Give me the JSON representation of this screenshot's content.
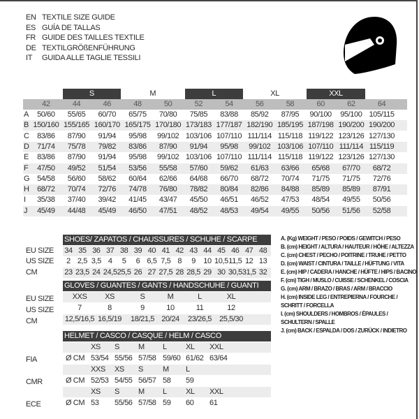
{
  "titles": [
    {
      "lang": "EN",
      "text": "TEXTILE SIZE GUIDE"
    },
    {
      "lang": "ES",
      "text": "GUÍA DE TALLAS"
    },
    {
      "lang": "FR",
      "text": "GUIDE DES TAILLES TEXTILE"
    },
    {
      "lang": "DE",
      "text": "TEXTILGRÖßENFÜHRUNG"
    },
    {
      "lang": "IT",
      "text": "GUIDA ALLE TAGLIE TESSILI"
    }
  ],
  "icon": "helmet-icon",
  "textile": {
    "size_groups": [
      "S",
      "M",
      "L",
      "XL",
      "XXL"
    ],
    "columns": [
      "42",
      "44",
      "46",
      "48",
      "50",
      "52",
      "54",
      "56",
      "58",
      "60",
      "62",
      "64"
    ],
    "rows": [
      {
        "label": "A",
        "values": [
          "50/60",
          "55/65",
          "60/70",
          "65/75",
          "70/80",
          "75/85",
          "83/88",
          "85/92",
          "87/95",
          "90/100",
          "95/100",
          "105/115"
        ]
      },
      {
        "label": "B",
        "values": [
          "150/160",
          "155/165",
          "160/170",
          "165/175",
          "170/180",
          "173/183",
          "177/187",
          "182/190",
          "185/195",
          "187/198",
          "190/200",
          "190/200"
        ]
      },
      {
        "label": "C",
        "values": [
          "83/86",
          "87/90",
          "91/94",
          "95/98",
          "99/102",
          "103/106",
          "107/110",
          "111/114",
          "115/118",
          "119/122",
          "123/126",
          "127/130"
        ]
      },
      {
        "label": "D",
        "values": [
          "71/74",
          "75/78",
          "79/82",
          "83/86",
          "87/90",
          "91/94",
          "95/98",
          "99/102",
          "103/106",
          "107/110",
          "111/114",
          "115/119"
        ]
      },
      {
        "label": "E",
        "values": [
          "83/86",
          "87/90",
          "91/94",
          "95/98",
          "99/102",
          "103/106",
          "107/110",
          "111/114",
          "115/118",
          "119/122",
          "123/126",
          "127/130"
        ]
      },
      {
        "label": "F",
        "values": [
          "47/50",
          "49/52",
          "51/54",
          "53/56",
          "55/58",
          "57/60",
          "59/62",
          "61/63",
          "63/66",
          "65/68",
          "67/70",
          "68/72"
        ]
      },
      {
        "label": "G",
        "values": [
          "54/58",
          "56/60",
          "58/62",
          "60/64",
          "62/66",
          "64/68",
          "66/70",
          "68/72",
          "70/74",
          "71/75",
          "71/75",
          "72/76"
        ]
      },
      {
        "label": "H",
        "values": [
          "68/72",
          "70/74",
          "72/76",
          "74/78",
          "76/80",
          "78/82",
          "80/84",
          "82/86",
          "84/88",
          "85/89",
          "85/89",
          "87/91"
        ]
      },
      {
        "label": "I",
        "values": [
          "35/38",
          "37/40",
          "39/42",
          "41/45",
          "43/47",
          "45/50",
          "46/51",
          "46/52",
          "47/53",
          "48/54",
          "49/55",
          "50/56"
        ]
      },
      {
        "label": "J",
        "values": [
          "45/49",
          "44/48",
          "45/49",
          "46/50",
          "47/51",
          "48/52",
          "48/53",
          "49/54",
          "49/55",
          "50/56",
          "51/56",
          "52/58"
        ]
      }
    ]
  },
  "shoes": {
    "header": "SHOES/ ZAPATOS / CHAUSSURES / SCHUHE / SCARPE",
    "rows": [
      {
        "label": "EU SIZE",
        "values": [
          "34",
          "35",
          "36",
          "37",
          "38",
          "39",
          "40",
          "41",
          "42",
          "43",
          "44",
          "45",
          "46",
          "47",
          "48"
        ]
      },
      {
        "label": "US SIZE",
        "values": [
          "2",
          "2,5",
          "3,5",
          "4",
          "5",
          "6",
          "6,5",
          "7,5",
          "8",
          "9",
          "10",
          "10,5",
          "11,5",
          "12",
          "13"
        ]
      },
      {
        "label": "CM",
        "values": [
          "23",
          "23,5",
          "24",
          "24,5",
          "25,5",
          "26",
          "27",
          "27,5",
          "28",
          "28,5",
          "29",
          "30",
          "30,5",
          "31,5",
          "32"
        ]
      }
    ]
  },
  "gloves": {
    "header": "GLOVES / GUANTES / GANTS / HANDSCHUHE / GUANTI",
    "rows": [
      {
        "label": "EU SIZE",
        "values": [
          "XXS",
          "XS",
          "S",
          "M",
          "L",
          "XL"
        ]
      },
      {
        "label": "US SIZE",
        "values": [
          "7",
          "8",
          "9",
          "10",
          "11",
          "12"
        ]
      },
      {
        "label": "CM",
        "values": [
          "12,5/16,5",
          "16,5/19",
          "18/21,5",
          "20/24",
          "23/26,5",
          "25,5/30"
        ]
      }
    ]
  },
  "helmet": {
    "header": "HELMET / CASCO / CASQUE / HELM / CASCO",
    "unit": "Ø CM",
    "standards": [
      {
        "label": "FIA",
        "sizes": [
          "XS",
          "S",
          "M",
          "L",
          "XL",
          "XXL"
        ],
        "values": [
          "53/54",
          "55/56",
          "57/58",
          "59/60",
          "61/62",
          "63/64"
        ]
      },
      {
        "label": "CMR",
        "sizes": [
          "XXS",
          "XS",
          "S",
          "M",
          "L"
        ],
        "values": [
          "52/53",
          "54/55",
          "56/57",
          "58",
          "59"
        ]
      },
      {
        "label": "ECE",
        "sizes": [
          "XS",
          "S",
          "M",
          "L",
          "XL",
          "XXL"
        ],
        "values": [
          "53",
          "55/56",
          "57/58",
          "59",
          "60",
          "61"
        ]
      }
    ]
  },
  "legend": [
    "A. (Kg) WEIGHT / PESO / POIDS / GEWITCH / PESO",
    "B. (cm) HEIGHT / ALTURA / HAUTEUR / HÖHE / ALTEZZA",
    "C. (cm) CHEST / PECHO / POITRINE / TRUHE / PETTO",
    "D. (cm) WAIST / CINTURA / TAILLE / HÜFTUNG / VITA",
    "E. (cm) HIP / CADERA / HANCHE / HÜFTE / HIPS /  BACINO",
    "F.  (cm) TIGH / MUSLO / CUISSE / SCHENKEL / COSCIA",
    "G. (cm) ARM  / BRAZO / BRAS / ARM / BRACCIO",
    "H. (cm) INSIDE LEG / ENTREPIERNA / FOURCHE /",
    "SCHRITT / FORCELLA",
    "I.  (cm) SHOULDERS / HOMBROS / ÉPAULES /",
    "SCHULTERN / SPALLE",
    "J. (cm) BACK / ESPALDA / DOS / ZURÜCK / INDIETRO"
  ]
}
